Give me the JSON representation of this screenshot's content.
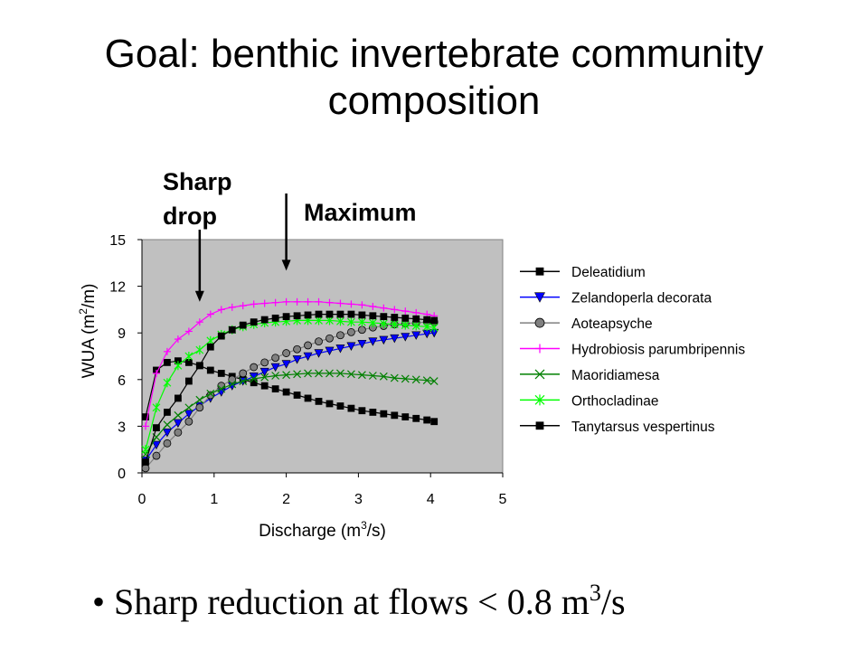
{
  "slide": {
    "title_line1": "Goal: benthic invertebrate community",
    "title_line2": "composition",
    "annotation_drop_line1": "Sharp",
    "annotation_drop_line2": "drop",
    "annotation_max": "Maximum",
    "bullet_glyph": "•",
    "bullet_text": "Sharp reduction at flows < 0.8 m",
    "bullet_sup": "3",
    "bullet_suffix": "/s"
  },
  "chart_data": {
    "type": "line",
    "title": "",
    "xlabel": "Discharge (m3/s)",
    "xlabel_parts": [
      "Discharge (m",
      "3",
      "/s)"
    ],
    "ylabel": "WUA (m2/m)",
    "ylabel_parts": [
      "WUA (m",
      "2",
      "/m)"
    ],
    "xlim": [
      0,
      5
    ],
    "ylim": [
      0,
      15
    ],
    "xticks": [
      "0",
      "1",
      "2",
      "3",
      "4",
      "5"
    ],
    "yticks": [
      "0",
      "3",
      "6",
      "9",
      "12",
      "15"
    ],
    "plot_background": "#c0c0c0",
    "grid": false,
    "legend_position": "right",
    "arrows": [
      {
        "label": "Sharp drop",
        "x": 0.8,
        "y_tip": 11.0
      },
      {
        "label": "Maximum",
        "x": 2.0,
        "y_tip": 13.0
      }
    ],
    "x": [
      0.05,
      0.2,
      0.35,
      0.5,
      0.65,
      0.8,
      0.95,
      1.1,
      1.25,
      1.4,
      1.55,
      1.7,
      1.85,
      2.0,
      2.15,
      2.3,
      2.45,
      2.6,
      2.75,
      2.9,
      3.05,
      3.2,
      3.35,
      3.5,
      3.65,
      3.8,
      3.95,
      4.05
    ],
    "series": [
      {
        "name": "Deleatidium",
        "color": "#000000",
        "marker": "square",
        "values": [
          3.6,
          6.6,
          7.1,
          7.2,
          7.1,
          6.9,
          6.6,
          6.4,
          6.2,
          6.0,
          5.8,
          5.6,
          5.4,
          5.2,
          5.0,
          4.8,
          4.6,
          4.45,
          4.3,
          4.15,
          4.0,
          3.9,
          3.8,
          3.7,
          3.6,
          3.5,
          3.4,
          3.3
        ]
      },
      {
        "name": "Zelandoperla decorata",
        "color": "#0000ff",
        "marker": "triangle-down",
        "values": [
          0.8,
          1.8,
          2.6,
          3.2,
          3.8,
          4.3,
          4.8,
          5.2,
          5.6,
          5.9,
          6.2,
          6.5,
          6.8,
          7.0,
          7.3,
          7.5,
          7.7,
          7.85,
          8.0,
          8.15,
          8.3,
          8.45,
          8.55,
          8.65,
          8.75,
          8.85,
          8.95,
          9.0
        ]
      },
      {
        "name": "Aoteapsyche",
        "color": "#808080",
        "marker": "circle",
        "values": [
          0.3,
          1.1,
          1.9,
          2.6,
          3.3,
          4.2,
          5.0,
          5.6,
          6.0,
          6.4,
          6.8,
          7.1,
          7.4,
          7.7,
          7.95,
          8.2,
          8.45,
          8.65,
          8.85,
          9.05,
          9.2,
          9.35,
          9.45,
          9.55,
          9.6,
          9.65,
          9.7,
          9.7
        ]
      },
      {
        "name": "Hydrobiosis parumbripennis",
        "color": "#ff00ff",
        "marker": "plus",
        "values": [
          3.0,
          6.4,
          7.8,
          8.6,
          9.1,
          9.7,
          10.2,
          10.5,
          10.65,
          10.75,
          10.85,
          10.9,
          10.95,
          11.0,
          11.0,
          11.0,
          11.0,
          10.95,
          10.9,
          10.85,
          10.8,
          10.7,
          10.6,
          10.5,
          10.4,
          10.3,
          10.2,
          10.1
        ]
      },
      {
        "name": "Maoridiamesa",
        "color": "#008000",
        "marker": "x",
        "values": [
          1.2,
          2.3,
          3.1,
          3.7,
          4.2,
          4.7,
          5.1,
          5.4,
          5.7,
          5.9,
          6.05,
          6.15,
          6.25,
          6.3,
          6.35,
          6.4,
          6.4,
          6.4,
          6.4,
          6.35,
          6.3,
          6.25,
          6.2,
          6.1,
          6.05,
          6.0,
          5.95,
          5.9
        ]
      },
      {
        "name": "Orthocladinae",
        "color": "#00ff00",
        "marker": "asterisk",
        "values": [
          1.5,
          4.2,
          5.8,
          6.9,
          7.5,
          7.9,
          8.5,
          8.9,
          9.2,
          9.4,
          9.55,
          9.65,
          9.7,
          9.75,
          9.8,
          9.8,
          9.8,
          9.8,
          9.75,
          9.7,
          9.7,
          9.65,
          9.6,
          9.55,
          9.5,
          9.45,
          9.4,
          9.35
        ]
      },
      {
        "name": "Tanytarsus vespertinus",
        "color": "#000000",
        "marker": "square",
        "values": [
          0.7,
          2.9,
          3.9,
          4.8,
          5.9,
          6.9,
          8.1,
          8.8,
          9.2,
          9.5,
          9.7,
          9.85,
          9.95,
          10.05,
          10.1,
          10.15,
          10.2,
          10.2,
          10.2,
          10.2,
          10.15,
          10.1,
          10.05,
          10.0,
          9.95,
          9.9,
          9.85,
          9.8
        ]
      }
    ]
  }
}
